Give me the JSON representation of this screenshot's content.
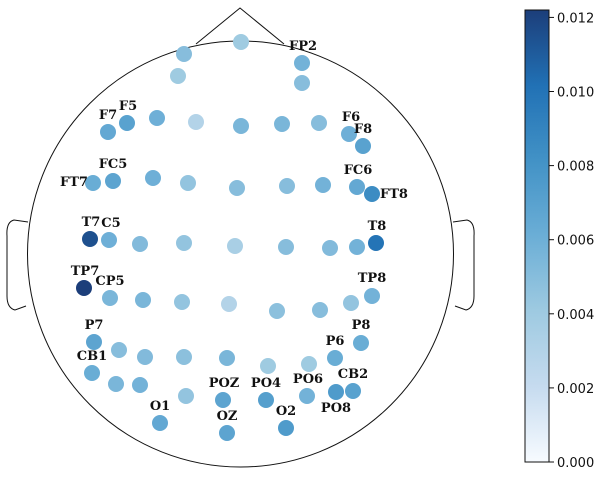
{
  "colorbar": {
    "min": 0.0,
    "max": 0.0122,
    "ticks": [
      "0.000",
      "0.002",
      "0.004",
      "0.006",
      "0.008",
      "0.010",
      "0.012"
    ],
    "tick_values": [
      0.0,
      0.002,
      0.004,
      0.006,
      0.008,
      0.01,
      0.012
    ],
    "colormap": [
      "#f7fbff",
      "#c6dbef",
      "#9ecae1",
      "#6baed6",
      "#4292c6",
      "#2171b5",
      "#1c3e7a"
    ]
  },
  "electrodes": [
    {
      "label": "",
      "value": 0.005
    },
    {
      "label": "",
      "value": 0.004
    },
    {
      "label": "FP2",
      "value": 0.0058
    },
    {
      "label": "",
      "value": 0.004
    },
    {
      "label": "",
      "value": 0.005
    },
    {
      "label": "F7",
      "value": 0.0065
    },
    {
      "label": "F5",
      "value": 0.007
    },
    {
      "label": "",
      "value": 0.006
    },
    {
      "label": "",
      "value": 0.003
    },
    {
      "label": "",
      "value": 0.0055
    },
    {
      "label": "",
      "value": 0.0055
    },
    {
      "label": "",
      "value": 0.005
    },
    {
      "label": "F6",
      "value": 0.006
    },
    {
      "label": "F8",
      "value": 0.007
    },
    {
      "label": "FT7",
      "value": 0.0062
    },
    {
      "label": "FC5",
      "value": 0.0068
    },
    {
      "label": "",
      "value": 0.006
    },
    {
      "label": "",
      "value": 0.0045
    },
    {
      "label": "",
      "value": 0.005
    },
    {
      "label": "",
      "value": 0.005
    },
    {
      "label": "",
      "value": 0.0058
    },
    {
      "label": "FC6",
      "value": 0.0065
    },
    {
      "label": "FT8",
      "value": 0.0085
    },
    {
      "label": "T7",
      "value": 0.0115
    },
    {
      "label": "C5",
      "value": 0.006
    },
    {
      "label": "",
      "value": 0.0052
    },
    {
      "label": "",
      "value": 0.0045
    },
    {
      "label": "",
      "value": 0.0035
    },
    {
      "label": "",
      "value": 0.005
    },
    {
      "label": "",
      "value": 0.0052
    },
    {
      "label": "",
      "value": 0.0058
    },
    {
      "label": "T8",
      "value": 0.01
    },
    {
      "label": "TP7",
      "value": 0.0122
    },
    {
      "label": "CP5",
      "value": 0.0055
    },
    {
      "label": "",
      "value": 0.0055
    },
    {
      "label": "",
      "value": 0.0045
    },
    {
      "label": "",
      "value": 0.003
    },
    {
      "label": "",
      "value": 0.0048
    },
    {
      "label": "",
      "value": 0.005
    },
    {
      "label": "",
      "value": 0.0045
    },
    {
      "label": "TP8",
      "value": 0.0058
    },
    {
      "label": "P7",
      "value": 0.0068
    },
    {
      "label": "",
      "value": 0.005
    },
    {
      "label": "",
      "value": 0.0052
    },
    {
      "label": "",
      "value": 0.0048
    },
    {
      "label": "",
      "value": 0.0055
    },
    {
      "label": "",
      "value": 0.004
    },
    {
      "label": "",
      "value": 0.004
    },
    {
      "label": "P6",
      "value": 0.0062
    },
    {
      "label": "P8",
      "value": 0.0062
    },
    {
      "label": "CB1",
      "value": 0.0062
    },
    {
      "label": "",
      "value": 0.0055
    },
    {
      "label": "",
      "value": 0.0058
    },
    {
      "label": "",
      "value": 0.0045
    },
    {
      "label": "POZ",
      "value": 0.0068
    },
    {
      "label": "PO4",
      "value": 0.0072
    },
    {
      "label": "PO6",
      "value": 0.0058
    },
    {
      "label": "PO8",
      "value": 0.0075
    },
    {
      "label": "CB2",
      "value": 0.007
    },
    {
      "label": "O1",
      "value": 0.0065
    },
    {
      "label": "OZ",
      "value": 0.0068
    },
    {
      "label": "O2",
      "value": 0.0075
    }
  ]
}
